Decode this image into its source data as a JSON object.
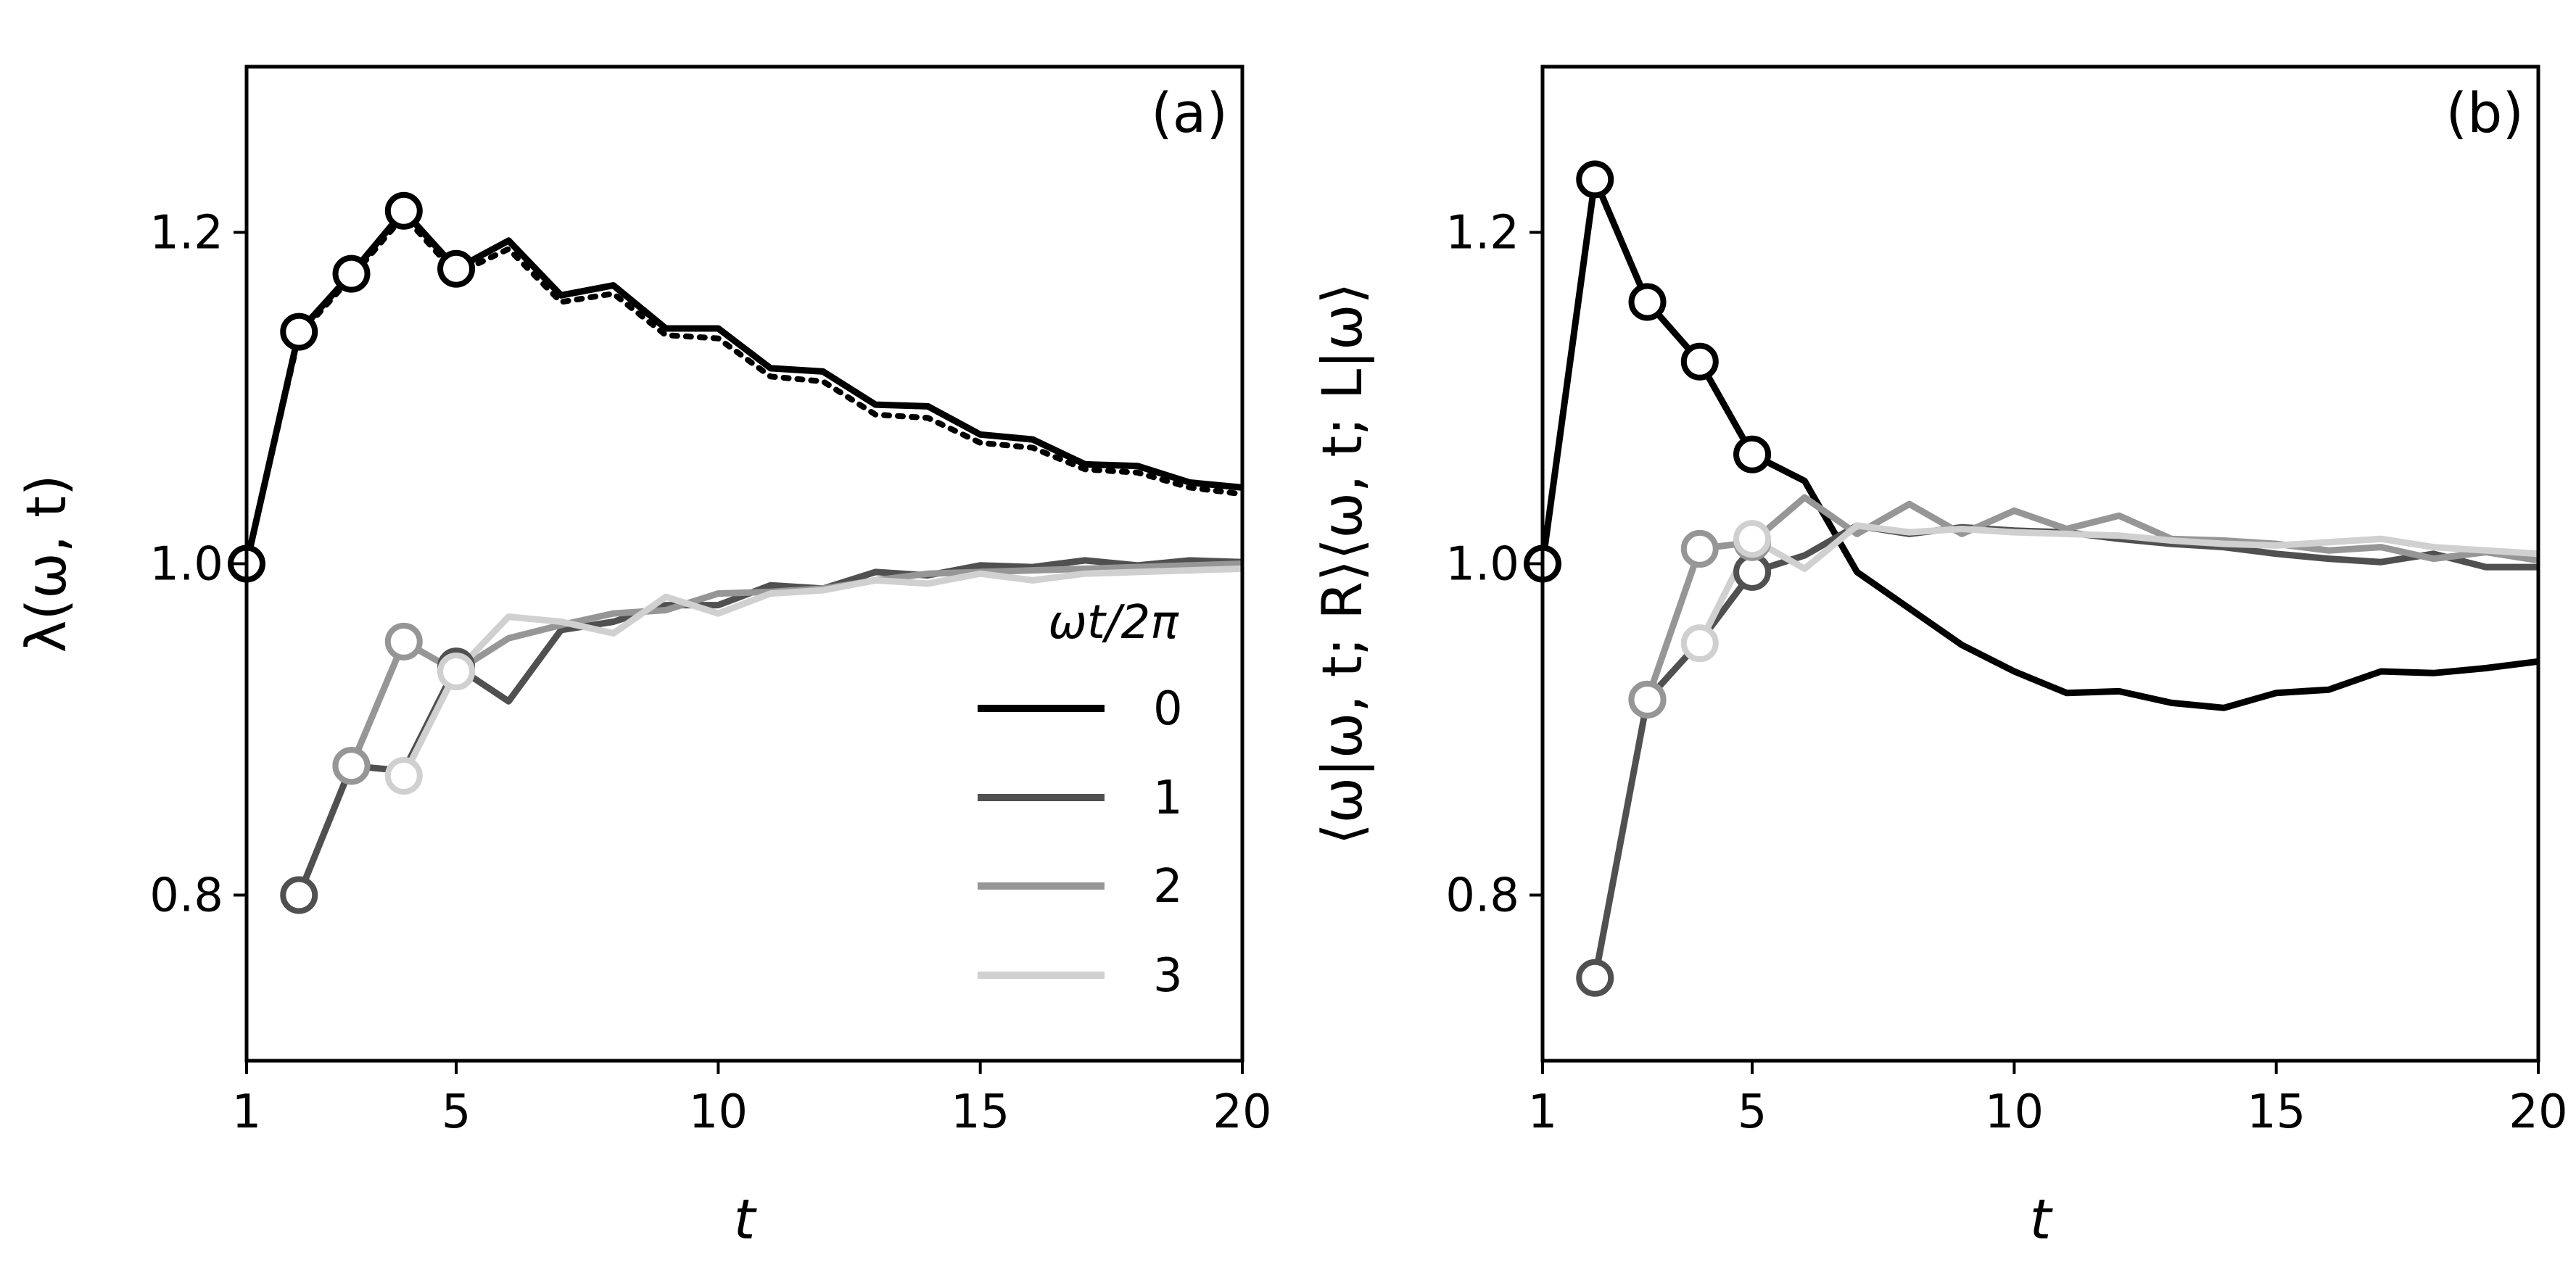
{
  "chart_data": [
    {
      "type": "line",
      "panel_label": "(a)",
      "xlabel": "t",
      "ylabel": "λ(ω, t)",
      "xlim": [
        1,
        20
      ],
      "ylim": [
        0.7,
        1.3
      ],
      "xticks": [
        1,
        5,
        10,
        15,
        20
      ],
      "xtick_labels": [
        "1",
        "5",
        "10",
        "15",
        "20"
      ],
      "yticks": [
        0.8,
        1.0,
        1.2
      ],
      "ytick_labels": [
        "0.8",
        "1.0",
        "1.2"
      ],
      "legend": {
        "title": "ωt/2π",
        "placement": "lower-right",
        "entries": [
          "0",
          "1",
          "2",
          "3"
        ]
      },
      "series": [
        {
          "name": "0",
          "color": "#000000",
          "x": [
            1,
            2,
            3,
            4,
            5,
            6,
            7,
            8,
            9,
            10,
            11,
            12,
            13,
            14,
            15,
            16,
            17,
            18,
            19,
            20
          ],
          "values": [
            1.0,
            1.14,
            1.175,
            1.213,
            1.178,
            1.195,
            1.162,
            1.168,
            1.142,
            1.142,
            1.118,
            1.116,
            1.096,
            1.095,
            1.078,
            1.075,
            1.06,
            1.059,
            1.049,
            1.046
          ],
          "markers": [
            1,
            2,
            3,
            4,
            5
          ]
        },
        {
          "name": "0 (dotted)",
          "color": "#000000",
          "dash": "dotted",
          "x": [
            1,
            2,
            3,
            4,
            5,
            6,
            7,
            8,
            9,
            10,
            11,
            12,
            13,
            14,
            15,
            16,
            17,
            18,
            19,
            20
          ],
          "values": [
            1.0,
            1.138,
            1.173,
            1.21,
            1.175,
            1.19,
            1.158,
            1.163,
            1.138,
            1.136,
            1.113,
            1.11,
            1.09,
            1.088,
            1.073,
            1.07,
            1.057,
            1.055,
            1.046,
            1.042
          ],
          "markers": []
        },
        {
          "name": "1",
          "color": "#505050",
          "x": [
            2,
            3,
            4,
            5,
            6,
            7,
            8,
            9,
            10,
            11,
            12,
            13,
            14,
            15,
            16,
            17,
            18,
            19,
            20
          ],
          "values": [
            0.8,
            0.878,
            0.875,
            0.938,
            0.917,
            0.96,
            0.965,
            0.975,
            0.975,
            0.987,
            0.985,
            0.995,
            0.993,
            0.999,
            0.998,
            1.002,
            0.999,
            1.002,
            1.001
          ],
          "markers": [
            2,
            3,
            5
          ]
        },
        {
          "name": "2",
          "color": "#969696",
          "x": [
            3,
            4,
            5,
            6,
            7,
            8,
            9,
            10,
            11,
            12,
            13,
            14,
            15,
            16,
            17,
            18,
            19,
            20
          ],
          "values": [
            0.878,
            0.953,
            0.935,
            0.955,
            0.963,
            0.97,
            0.972,
            0.982,
            0.983,
            0.985,
            0.99,
            0.994,
            0.995,
            0.996,
            0.997,
            0.998,
            0.999,
            1.0
          ],
          "markers": [
            3,
            4,
            5
          ]
        },
        {
          "name": "3",
          "color": "#d0d0d0",
          "x": [
            4,
            5,
            6,
            7,
            8,
            9,
            10,
            11,
            12,
            13,
            14,
            15,
            16,
            17,
            18,
            19,
            20
          ],
          "values": [
            0.872,
            0.935,
            0.968,
            0.965,
            0.958,
            0.98,
            0.97,
            0.982,
            0.984,
            0.99,
            0.988,
            0.994,
            0.99,
            0.994,
            0.995,
            0.996,
            0.997
          ],
          "markers": [
            4,
            5
          ]
        }
      ]
    },
    {
      "type": "line",
      "panel_label": "(b)",
      "xlabel": "t",
      "ylabel": "⟨ω|ω, t; R⟩⟨ω, t; L|ω⟩",
      "xlim": [
        1,
        20
      ],
      "ylim": [
        0.7,
        1.3
      ],
      "xticks": [
        1,
        5,
        10,
        15,
        20
      ],
      "xtick_labels": [
        "1",
        "5",
        "10",
        "15",
        "20"
      ],
      "yticks": [
        0.8,
        1.0,
        1.2
      ],
      "ytick_labels": [
        "0.8",
        "1.0",
        "1.2"
      ],
      "series": [
        {
          "name": "0",
          "color": "#000000",
          "x": [
            1,
            2,
            3,
            4,
            5,
            6,
            7,
            8,
            9,
            10,
            11,
            12,
            13,
            14,
            15,
            16,
            17,
            18,
            19,
            20
          ],
          "values": [
            1.0,
            1.232,
            1.158,
            1.122,
            1.066,
            1.05,
            0.995,
            0.973,
            0.951,
            0.935,
            0.922,
            0.923,
            0.916,
            0.913,
            0.922,
            0.924,
            0.935,
            0.934,
            0.937,
            0.941
          ],
          "markers": [
            1,
            2,
            3,
            4,
            5
          ]
        },
        {
          "name": "1",
          "color": "#505050",
          "x": [
            2,
            3,
            4,
            5,
            6,
            7,
            8,
            9,
            10,
            11,
            12,
            13,
            14,
            15,
            16,
            17,
            18,
            19,
            20
          ],
          "values": [
            0.75,
            0.918,
            0.953,
            0.995,
            1.005,
            1.023,
            1.018,
            1.022,
            1.02,
            1.019,
            1.015,
            1.012,
            1.01,
            1.006,
            1.003,
            1.001,
            1.006,
            0.998,
            0.998
          ],
          "markers": [
            2,
            3,
            5
          ]
        },
        {
          "name": "2",
          "color": "#969696",
          "x": [
            3,
            4,
            5,
            6,
            7,
            8,
            9,
            10,
            11,
            12,
            13,
            14,
            15,
            16,
            17,
            18,
            19,
            20
          ],
          "values": [
            0.918,
            1.009,
            1.013,
            1.04,
            1.018,
            1.036,
            1.018,
            1.032,
            1.021,
            1.029,
            1.015,
            1.014,
            1.012,
            1.008,
            1.01,
            1.003,
            1.007,
            1.002
          ],
          "markers": [
            3,
            4,
            5
          ]
        },
        {
          "name": "3",
          "color": "#d0d0d0",
          "x": [
            4,
            5,
            6,
            7,
            8,
            9,
            10,
            11,
            12,
            13,
            14,
            15,
            16,
            17,
            18,
            19,
            20
          ],
          "values": [
            0.952,
            1.015,
            0.997,
            1.023,
            1.019,
            1.021,
            1.019,
            1.018,
            1.017,
            1.014,
            1.012,
            1.011,
            1.013,
            1.015,
            1.01,
            1.008,
            1.006
          ],
          "markers": [
            4,
            5
          ]
        }
      ]
    }
  ]
}
